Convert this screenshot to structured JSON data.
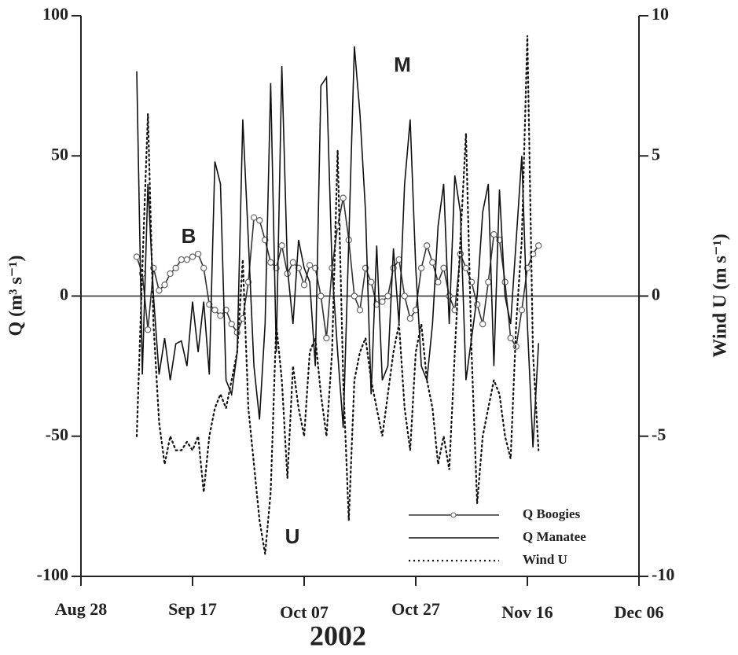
{
  "chart_data": {
    "type": "line",
    "x": [
      "2002-09-07",
      "2002-09-08",
      "2002-09-09",
      "2002-09-10",
      "2002-09-11",
      "2002-09-12",
      "2002-09-13",
      "2002-09-14",
      "2002-09-15",
      "2002-09-16",
      "2002-09-17",
      "2002-09-18",
      "2002-09-19",
      "2002-09-20",
      "2002-09-21",
      "2002-09-22",
      "2002-09-23",
      "2002-09-24",
      "2002-09-25",
      "2002-09-26",
      "2002-09-27",
      "2002-09-28",
      "2002-09-29",
      "2002-09-30",
      "2002-10-01",
      "2002-10-02",
      "2002-10-03",
      "2002-10-04",
      "2002-10-05",
      "2002-10-06",
      "2002-10-07",
      "2002-10-08",
      "2002-10-09",
      "2002-10-10",
      "2002-10-11",
      "2002-10-12",
      "2002-10-13",
      "2002-10-14",
      "2002-10-15",
      "2002-10-16",
      "2002-10-17",
      "2002-10-18",
      "2002-10-19",
      "2002-10-20",
      "2002-10-21",
      "2002-10-22",
      "2002-10-23",
      "2002-10-24",
      "2002-10-25",
      "2002-10-26",
      "2002-10-27",
      "2002-10-28",
      "2002-10-29",
      "2002-10-30",
      "2002-10-31",
      "2002-11-01",
      "2002-11-02",
      "2002-11-03",
      "2002-11-04",
      "2002-11-05",
      "2002-11-06",
      "2002-11-07",
      "2002-11-08",
      "2002-11-09",
      "2002-11-10",
      "2002-11-11",
      "2002-11-12",
      "2002-11-13",
      "2002-11-14",
      "2002-11-15",
      "2002-11-16",
      "2002-11-17",
      "2002-11-18"
    ],
    "series": [
      {
        "name": "Q Boogies",
        "color": "#333333",
        "marker": "circle",
        "dash": "solid",
        "axis": "y",
        "values": [
          14,
          8,
          -12,
          10,
          2,
          4,
          8,
          10,
          13,
          13,
          14,
          15,
          10,
          -3,
          -5,
          -7,
          -5,
          -10,
          -13,
          -8,
          5,
          28,
          27,
          20,
          12,
          10,
          18,
          8,
          12,
          10,
          4,
          11,
          10,
          0,
          -15,
          10,
          25,
          35,
          20,
          0,
          -5,
          10,
          5,
          -3,
          -2,
          0,
          10,
          13,
          0,
          -8,
          -5,
          10,
          18,
          12,
          5,
          10,
          0,
          -5,
          15,
          10,
          5,
          -3,
          -10,
          5,
          22,
          20,
          5,
          -15,
          -18,
          -5,
          10,
          15,
          18
        ]
      },
      {
        "name": "Q Manatee",
        "color": "#111111",
        "marker": "none",
        "dash": "solid",
        "axis": "y",
        "values": [
          80,
          -28,
          40,
          0,
          -28,
          -15,
          -30,
          -17,
          -16,
          -25,
          -2,
          -20,
          -2,
          -28,
          48,
          40,
          -30,
          -35,
          -20,
          63,
          20,
          -25,
          -44,
          -10,
          76,
          -20,
          82,
          10,
          -10,
          20,
          10,
          5,
          -25,
          75,
          78,
          10,
          -20,
          -47,
          20,
          89,
          65,
          30,
          -35,
          18,
          -30,
          -25,
          17,
          -10,
          40,
          63,
          10,
          -25,
          -30,
          -10,
          25,
          40,
          -10,
          43,
          30,
          -30,
          -15,
          0,
          30,
          40,
          -25,
          38,
          0,
          -10,
          20,
          50,
          -10,
          -54,
          -17
        ]
      },
      {
        "name": "Wind U",
        "color": "#111111",
        "marker": "none",
        "dash": "dotted",
        "axis": "y2",
        "values": [
          -5,
          1,
          6.5,
          -1,
          -4.5,
          -6,
          -5,
          -5.5,
          -5.5,
          -5.2,
          -5.5,
          -5,
          -7,
          -5,
          -4,
          -3.5,
          -4,
          -3,
          -2,
          1.3,
          -4,
          -6,
          -8,
          -9.2,
          -7,
          -1,
          -3,
          -6.5,
          -2.5,
          -4,
          -5,
          -2,
          -1.5,
          -3.5,
          -5,
          -2,
          5.2,
          -3,
          -8,
          -3,
          -2,
          -1.5,
          -3,
          -4,
          -5,
          -3.5,
          -2,
          -1,
          -4,
          -5.5,
          -2,
          -1,
          -3,
          -4,
          -6,
          -5,
          -6.2,
          -2,
          2,
          5.8,
          -2,
          -7.4,
          -5,
          -4,
          -3,
          -3.5,
          -5,
          -5.8,
          -1,
          2,
          9.3,
          -2,
          -5.5
        ]
      }
    ],
    "xlim": [
      "2002-08-28",
      "2002-12-06"
    ],
    "xticks": [
      {
        "value": "2002-08-28",
        "label": "Aug 28"
      },
      {
        "value": "2002-09-17",
        "label": "Sep 17"
      },
      {
        "value": "2002-10-07",
        "label": "Oct 07"
      },
      {
        "value": "2002-10-27",
        "label": "Oct 27"
      },
      {
        "value": "2002-11-16",
        "label": "Nov 16"
      },
      {
        "value": "2002-12-06",
        "label": "Dec 06"
      }
    ],
    "ylim": [
      -100,
      100
    ],
    "yticks": [
      -100,
      -50,
      0,
      50,
      100
    ],
    "y2lim": [
      -10,
      10
    ],
    "y2ticks": [
      -10,
      -5,
      0,
      5,
      10
    ],
    "xlabel": "2002",
    "ylabel": "Q (m³ s⁻¹)",
    "y2label": "Wind U (m s⁻¹)",
    "zero_line": true,
    "legend": "lower right",
    "annotations": [
      "B",
      "M",
      "U"
    ]
  }
}
